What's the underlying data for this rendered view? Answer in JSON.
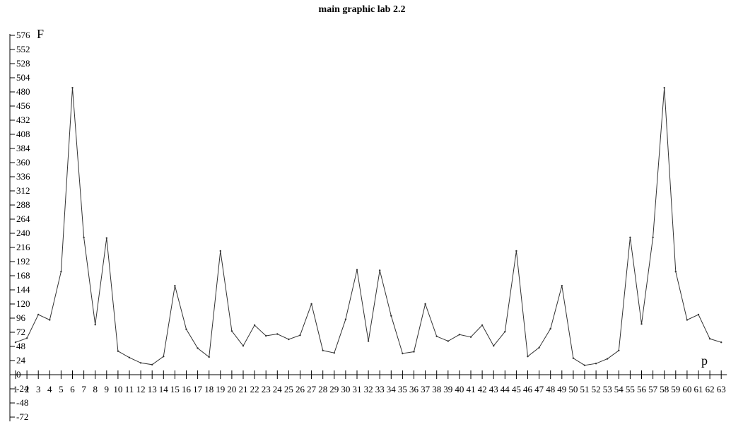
{
  "chart_data": {
    "type": "line",
    "title": "main graphic lab 2.2",
    "xlabel": "p",
    "ylabel": "F",
    "x": [
      1,
      2,
      3,
      4,
      5,
      6,
      7,
      8,
      9,
      10,
      11,
      12,
      13,
      14,
      15,
      16,
      17,
      18,
      19,
      20,
      21,
      22,
      23,
      24,
      25,
      26,
      27,
      28,
      29,
      30,
      31,
      32,
      33,
      34,
      35,
      36,
      37,
      38,
      39,
      40,
      41,
      42,
      43,
      44,
      45,
      46,
      47,
      48,
      49,
      50,
      51,
      52,
      53,
      54,
      55,
      56,
      57,
      58,
      59,
      60,
      61,
      62,
      63
    ],
    "values": [
      55,
      62,
      102,
      93,
      175,
      487,
      233,
      85,
      232,
      40,
      29,
      20,
      17,
      31,
      151,
      77,
      45,
      30,
      210,
      74,
      49,
      84,
      66,
      69,
      60,
      67,
      120,
      41,
      37,
      94,
      178,
      57,
      177,
      100,
      36,
      39,
      120,
      65,
      57,
      68,
      64,
      84,
      49,
      73,
      210,
      31,
      46,
      78,
      151,
      28,
      16,
      19,
      27,
      41,
      233,
      86,
      233,
      487,
      175,
      93,
      102,
      61,
      55
    ],
    "yticks": [
      -72,
      -48,
      -24,
      0,
      24,
      48,
      72,
      96,
      120,
      144,
      168,
      192,
      216,
      240,
      264,
      288,
      312,
      336,
      360,
      384,
      408,
      432,
      456,
      480,
      504,
      528,
      552,
      576
    ],
    "ylim": [
      -72,
      576
    ],
    "grid": false
  }
}
